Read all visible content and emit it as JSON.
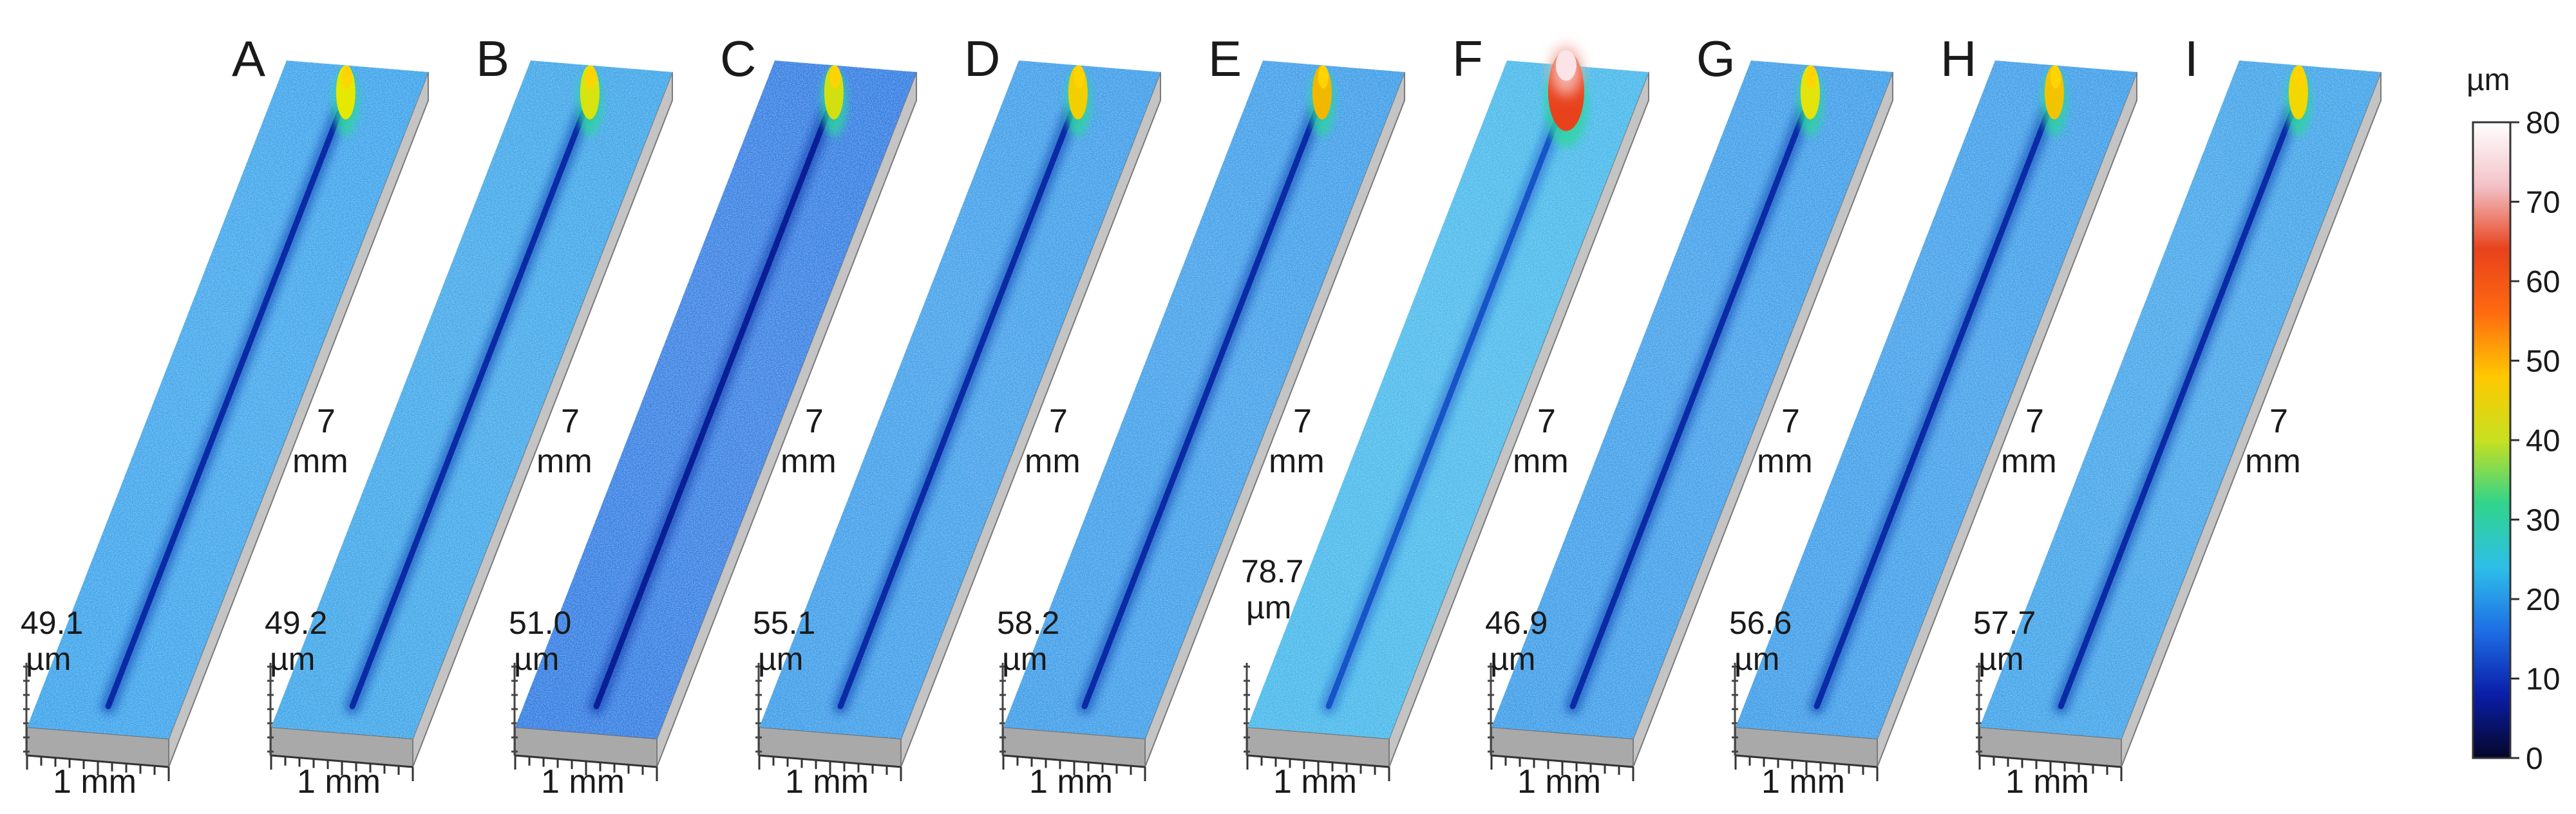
{
  "colorbar": {
    "unit": "µm",
    "ticks": [
      "0",
      "10",
      "20",
      "30",
      "40",
      "50",
      "60",
      "70",
      "80"
    ],
    "stops": [
      "#06062a",
      "#0a1ea8",
      "#1e6ee6",
      "#2ebfe8",
      "#30d48c",
      "#c8e020",
      "#ffc800",
      "#ff6a10",
      "#e8421c",
      "#f2c2c8",
      "#ffffff"
    ]
  },
  "panels": [
    {
      "letter": "A",
      "height_label": [
        "49.1",
        "µm"
      ],
      "length_label": [
        "7",
        "mm"
      ],
      "width_label": "1 mm",
      "surface_color": "#38a8ec",
      "groove_color": "#0b2aa6",
      "peak_color": "#e6e800"
    },
    {
      "letter": "B",
      "height_label": [
        "49.2",
        "µm"
      ],
      "length_label": [
        "7",
        "mm"
      ],
      "width_label": "1 mm",
      "surface_color": "#3aaaea",
      "groove_color": "#0b2aa6",
      "peak_color": "#d8e410"
    },
    {
      "letter": "C",
      "height_label": [
        "51.0",
        "µm"
      ],
      "length_label": [
        "7",
        "mm"
      ],
      "width_label": "1 mm",
      "surface_color": "#2a82e4",
      "groove_color": "#0a1e98",
      "peak_color": "#d2e012"
    },
    {
      "letter": "D",
      "height_label": [
        "55.1",
        "µm"
      ],
      "length_label": [
        "7",
        "mm"
      ],
      "width_label": "1 mm",
      "surface_color": "#3aa2ea",
      "groove_color": "#0b2aa6",
      "peak_color": "#f2d000"
    },
    {
      "letter": "E",
      "height_label": [
        "58.2",
        "µm"
      ],
      "length_label": [
        "7",
        "mm"
      ],
      "width_label": "1 mm",
      "surface_color": "#3aa2ea",
      "groove_color": "#0b2aa6",
      "peak_color": "#f2b800"
    },
    {
      "letter": "F",
      "height_label": [
        "78.7",
        "µm"
      ],
      "length_label": [
        "7",
        "mm"
      ],
      "width_label": "1 mm",
      "surface_color": "#46bcec",
      "groove_color": "#1654c8",
      "peak_color": "#e8421c"
    },
    {
      "letter": "G",
      "height_label": [
        "46.9",
        "µm"
      ],
      "length_label": [
        "7",
        "mm"
      ],
      "width_label": "1 mm",
      "surface_color": "#3aa2ea",
      "groove_color": "#0b2aa6",
      "peak_color": "#e2e40c"
    },
    {
      "letter": "H",
      "height_label": [
        "56.6",
        "µm"
      ],
      "length_label": [
        "7",
        "mm"
      ],
      "width_label": "1 mm",
      "surface_color": "#3aa2ea",
      "groove_color": "#0b2aa6",
      "peak_color": "#f2c400"
    },
    {
      "letter": "I",
      "height_label": [
        "57.7",
        "µm"
      ],
      "length_label": [
        "7",
        "mm"
      ],
      "width_label": "1 mm",
      "surface_color": "#3ea8ea",
      "groove_color": "#0b2aa6",
      "peak_color": "#f2d800"
    }
  ]
}
